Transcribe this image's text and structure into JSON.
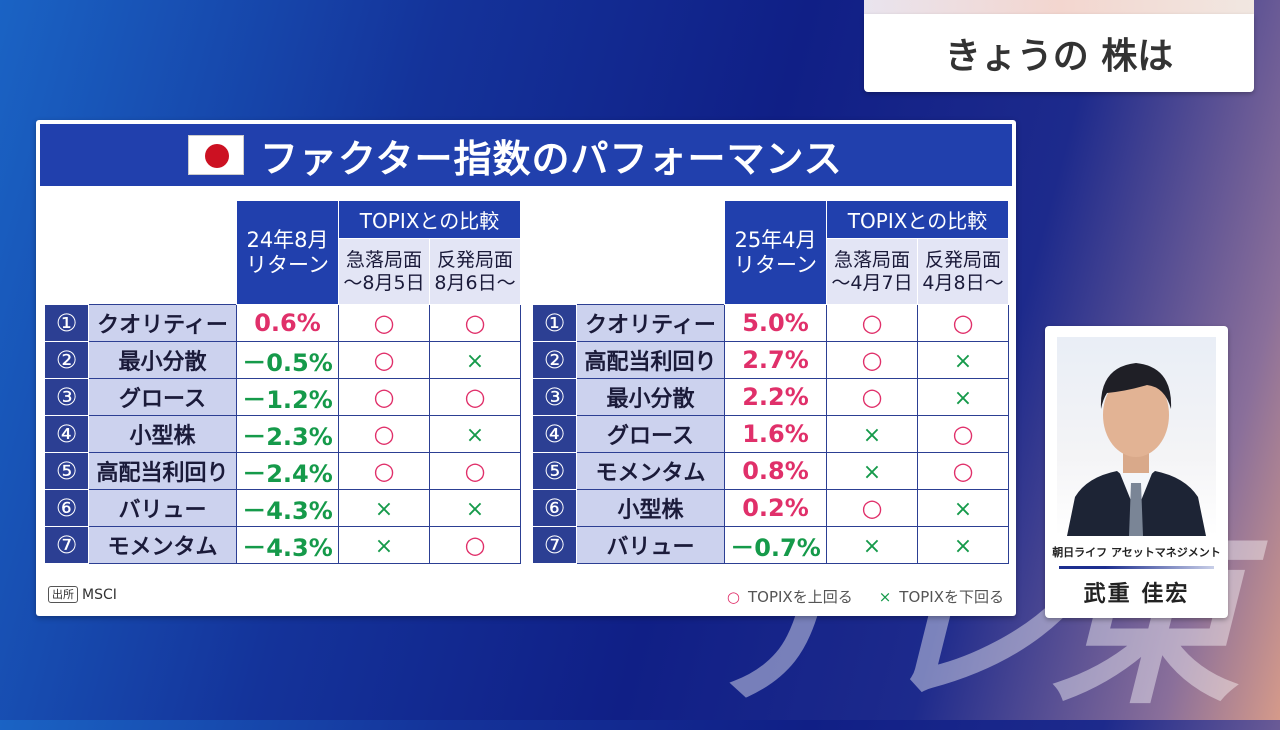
{
  "corner_title": "きょうの 株は",
  "watermark": "テレ東",
  "panel": {
    "title": "ファクター指数のパフォーマンス",
    "flag_icon": "japan-flag-icon"
  },
  "left_table": {
    "return_header": "24年8月\nリターン",
    "compare_header": "TOPIXとの比較",
    "col1_header": "急落局面\n～8月5日",
    "col2_header": "反発局面\n8月6日～",
    "rows": [
      {
        "num": "①",
        "name": "クオリティー",
        "value": "0.6%",
        "sign": "pos",
        "m1": "○",
        "m2": "○"
      },
      {
        "num": "②",
        "name": "最小分散",
        "value": "－0.5%",
        "sign": "neg",
        "m1": "○",
        "m2": "×"
      },
      {
        "num": "③",
        "name": "グロース",
        "value": "－1.2%",
        "sign": "neg",
        "m1": "○",
        "m2": "○"
      },
      {
        "num": "④",
        "name": "小型株",
        "value": "－2.3%",
        "sign": "neg",
        "m1": "○",
        "m2": "×"
      },
      {
        "num": "⑤",
        "name": "高配当利回り",
        "value": "－2.4%",
        "sign": "neg",
        "m1": "○",
        "m2": "○"
      },
      {
        "num": "⑥",
        "name": "バリュー",
        "value": "－4.3%",
        "sign": "neg",
        "m1": "×",
        "m2": "×"
      },
      {
        "num": "⑦",
        "name": "モメンタム",
        "value": "－4.3%",
        "sign": "neg",
        "m1": "×",
        "m2": "○"
      }
    ]
  },
  "right_table": {
    "return_header": "25年4月\nリターン",
    "compare_header": "TOPIXとの比較",
    "col1_header": "急落局面\n～4月7日",
    "col2_header": "反発局面\n4月8日～",
    "rows": [
      {
        "num": "①",
        "name": "クオリティー",
        "value": "5.0%",
        "sign": "pos",
        "m1": "○",
        "m2": "○"
      },
      {
        "num": "②",
        "name": "高配当利回り",
        "value": "2.7%",
        "sign": "pos",
        "m1": "○",
        "m2": "×"
      },
      {
        "num": "③",
        "name": "最小分散",
        "value": "2.2%",
        "sign": "pos",
        "m1": "○",
        "m2": "×"
      },
      {
        "num": "④",
        "name": "グロース",
        "value": "1.6%",
        "sign": "pos",
        "m1": "×",
        "m2": "○"
      },
      {
        "num": "⑤",
        "name": "モメンタム",
        "value": "0.8%",
        "sign": "pos",
        "m1": "×",
        "m2": "○"
      },
      {
        "num": "⑥",
        "name": "小型株",
        "value": "0.2%",
        "sign": "pos",
        "m1": "○",
        "m2": "×"
      },
      {
        "num": "⑦",
        "name": "バリュー",
        "value": "－0.7%",
        "sign": "neg",
        "m1": "×",
        "m2": "×"
      }
    ]
  },
  "source": {
    "badge": "出所",
    "text": "MSCI"
  },
  "legend": {
    "above_mark": "○",
    "above_text": "TOPIXを上回る",
    "below_mark": "×",
    "below_text": "TOPIXを下回る"
  },
  "person": {
    "company": "朝日ライフ アセットマネジメント",
    "name": "武重 佳宏"
  },
  "colors": {
    "header_blue": "#2140ad",
    "positive": "#e0306a",
    "negative": "#159a4a"
  }
}
